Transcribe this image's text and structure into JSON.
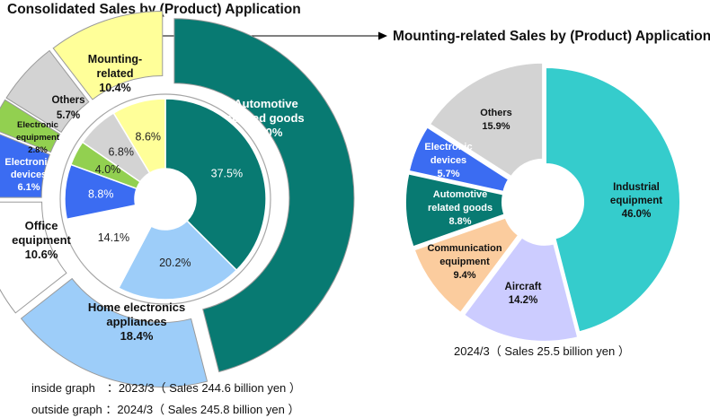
{
  "left_title": "Consolidated Sales by (Product) Application",
  "right_title": "Mounting-related Sales by (Product) Application",
  "captions": {
    "inside": "inside graph　：2023/3（ Sales 244.6 billion yen ）",
    "outside": "outside graph ：2024/3（ Sales 245.8 billion yen ）",
    "right": "2024/3（ Sales 25.5 billion yen ）"
  },
  "chart_data": [
    {
      "type": "pie",
      "chart": "consolidated-outer",
      "period": "2024/3",
      "slices": [
        {
          "key": "automotive",
          "label": "Automotive related goods",
          "value": 46.0,
          "value_text": "46.0%",
          "color": "#087a72"
        },
        {
          "key": "home",
          "label": "Home electronics appliances",
          "value": 18.4,
          "value_text": "18.4%",
          "color": "#9dcdf9"
        },
        {
          "key": "office",
          "label": "Office equipment",
          "value": 10.6,
          "value_text": "10.6%",
          "color": "#ffffff"
        },
        {
          "key": "edev",
          "label": "Electronic devices",
          "value": 6.1,
          "value_text": "6.1%",
          "color": "#3b6cf2"
        },
        {
          "key": "eequip",
          "label": "Electronic equipment",
          "value": 2.8,
          "value_text": "2.8%",
          "color": "#92d050"
        },
        {
          "key": "others",
          "label": "Others",
          "value": 5.7,
          "value_text": "5.7%",
          "color": "#d3d3d3"
        },
        {
          "key": "mounting",
          "label": "Mounting-related",
          "value": 10.4,
          "value_text": "10.4%",
          "color": "#ffff99"
        }
      ]
    },
    {
      "type": "pie",
      "chart": "consolidated-inner",
      "period": "2023/3",
      "slices": [
        {
          "key": "automotive",
          "value": 37.5,
          "value_text": "37.5%",
          "color": "#087a72"
        },
        {
          "key": "home",
          "value": 20.2,
          "value_text": "20.2%",
          "color": "#9dcdf9"
        },
        {
          "key": "office",
          "value": 14.1,
          "value_text": "14.1%",
          "color": "#ffffff"
        },
        {
          "key": "edev",
          "value": 8.8,
          "value_text": "8.8%",
          "color": "#3b6cf2"
        },
        {
          "key": "eequip",
          "value": 4.0,
          "value_text": "4.0%",
          "color": "#92d050"
        },
        {
          "key": "others",
          "value": 6.8,
          "value_text": "6.8%",
          "color": "#d3d3d3"
        },
        {
          "key": "mounting",
          "value": 8.6,
          "value_text": "8.6%",
          "color": "#ffff99"
        }
      ]
    },
    {
      "type": "pie",
      "chart": "mounting-related",
      "period": "2024/3",
      "slices": [
        {
          "key": "industrial",
          "label": "Industrial equipment",
          "value": 46.0,
          "value_text": "46.0%",
          "color": "#35cccc"
        },
        {
          "key": "aircraft",
          "label": "Aircraft",
          "value": 14.2,
          "value_text": "14.2%",
          "color": "#ccccff"
        },
        {
          "key": "comm",
          "label": "Communication equipment",
          "value": 9.4,
          "value_text": "9.4%",
          "color": "#fbcc9e"
        },
        {
          "key": "auto",
          "label": "Automotive related goods",
          "value": 8.8,
          "value_text": "8.8%",
          "color": "#087a72"
        },
        {
          "key": "edev",
          "label": "Electronic devices",
          "value": 5.7,
          "value_text": "5.7%",
          "color": "#3b6cf2"
        },
        {
          "key": "others",
          "label": "Others",
          "value": 15.9,
          "value_text": "15.9%",
          "color": "#d3d3d3"
        }
      ]
    }
  ]
}
